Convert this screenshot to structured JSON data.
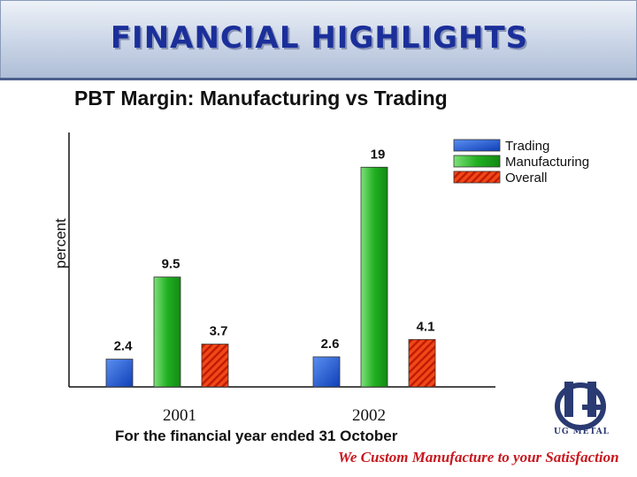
{
  "header": {
    "title": "FINANCIAL HIGHLIGHTS"
  },
  "chart_data": {
    "type": "bar",
    "title": "PBT Margin: Manufacturing vs Trading",
    "xlabel": "For the financial year ended 31 October",
    "ylabel": "percent",
    "categories": [
      "2001",
      "2002"
    ],
    "ylim": [
      0,
      22
    ],
    "grid": false,
    "legend_position": "top-right",
    "series": [
      {
        "name": "Trading",
        "values": [
          2.4,
          2.6
        ],
        "color": "#1f5fd6"
      },
      {
        "name": "Manufacturing",
        "values": [
          9.5,
          19
        ],
        "color": "#22b022"
      },
      {
        "name": "Overall",
        "values": [
          3.7,
          4.1
        ],
        "color": "#ee3a10"
      }
    ],
    "data_labels": [
      [
        "2.4",
        "2.6"
      ],
      [
        "9.5",
        "19"
      ],
      [
        "3.7",
        "4.1"
      ]
    ]
  },
  "branding": {
    "slogan": "We Custom Manufacture to your Satisfaction",
    "logo_text": "UG METAL",
    "logo_icon": "ug-metal-logo-icon"
  }
}
